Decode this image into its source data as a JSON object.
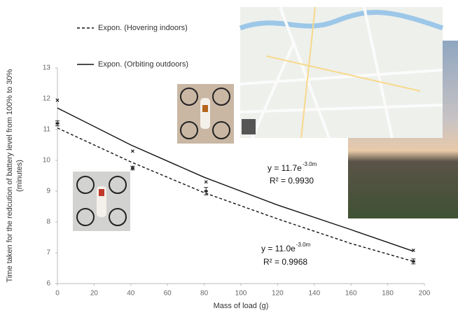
{
  "chart_data": {
    "type": "scatter",
    "x_label": "Mass of load (g)",
    "y_label": [
      "Time taken for the redcution of battery level from 100% to 30%",
      "(minutes)"
    ],
    "xlim": [
      0,
      200
    ],
    "xticks": [
      0,
      20,
      40,
      60,
      80,
      100,
      120,
      140,
      160,
      180,
      200
    ],
    "ylim": [
      6,
      13
    ],
    "yticks": [
      6,
      7,
      8,
      9,
      10,
      11,
      12,
      13
    ],
    "series": [
      {
        "marker": "bar",
        "color": "#222",
        "x": [
          0,
          41,
          81,
          194
        ],
        "values": [
          11.2,
          9.75,
          9.0,
          6.72
        ],
        "errors": [
          0.08,
          0.06,
          0.12,
          0.08
        ]
      },
      {
        "marker": "cross",
        "color": "#222",
        "x": [
          0,
          41,
          81,
          194
        ],
        "values": [
          11.95,
          10.3,
          9.3,
          7.08
        ]
      }
    ],
    "trendlines": [
      {
        "name": "Expon. (Hovering indoors)",
        "dash": true,
        "color": "#111",
        "x": [
          0,
          40,
          80,
          120,
          160,
          194
        ],
        "values": [
          11.05,
          9.95,
          8.95,
          8.1,
          7.3,
          6.72
        ]
      },
      {
        "name": "Expon. (Orbiting outdoors)",
        "dash": false,
        "color": "#111",
        "x": [
          0,
          40,
          80,
          120,
          160,
          194
        ],
        "values": [
          11.7,
          10.5,
          9.45,
          8.55,
          7.75,
          7.05
        ]
      }
    ],
    "annotations": [
      {
        "text": "y = 11.7e",
        "superscript": "-3.0m"
      },
      {
        "text": "R² = 0.9930"
      },
      {
        "text": "y = 11.0e",
        "superscript": "-3.0m"
      },
      {
        "text": "R² = 0.9968"
      }
    ]
  }
}
